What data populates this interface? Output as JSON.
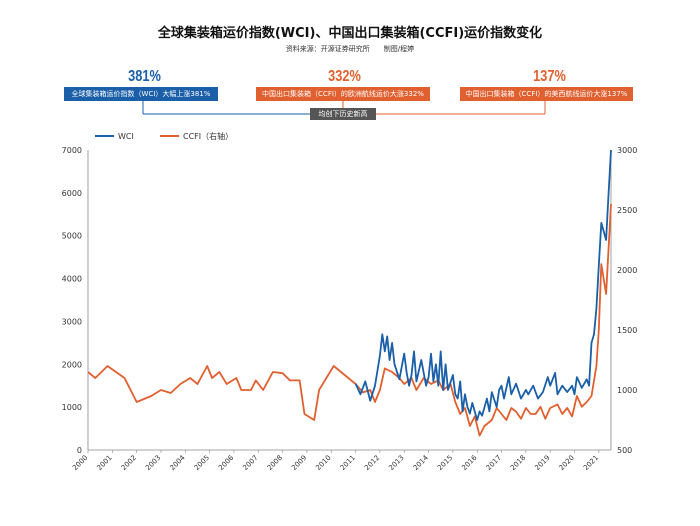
{
  "title": "全球集装箱运价指数(WCI)、中国出口集装箱(CCFI)运价指数变化",
  "source": "资料来源：开源证券研究所　　制图/程婷",
  "colors": {
    "wci": "#1a5fa8",
    "ccfi": "#e06030",
    "badge": "#555555"
  },
  "callouts": [
    {
      "value": "381%",
      "text": "全球集装箱运价指数（WCI）大幅上涨381%",
      "color": "#1a5fa8"
    },
    {
      "value": "332%",
      "text": "中国出口集装箱（CCFI）的欧洲航线运价大涨332%",
      "color": "#e06030"
    },
    {
      "value": "137%",
      "text": "中国出口集装箱（CCFI）的美西航线运价大涨137%",
      "color": "#e06030"
    }
  ],
  "badge": "均创下历史新高",
  "chart_data": {
    "type": "line",
    "title": "全球集装箱运价指数(WCI)、中国出口集装箱(CCFI)运价指数变化",
    "x_ticks": [
      "2000",
      "2001",
      "2002",
      "2003",
      "2004",
      "2005",
      "2006",
      "2007",
      "2008",
      "2009",
      "2010",
      "2011",
      "2012",
      "2013",
      "2014",
      "2015",
      "2016",
      "2017",
      "2018",
      "2019",
      "2020",
      "2021"
    ],
    "y_left": {
      "min": 0,
      "max": 7000,
      "ticks": [
        "0",
        "1000",
        "2000",
        "3000",
        "4000",
        "5000",
        "6000",
        "7000"
      ]
    },
    "y_right": {
      "min": 500,
      "max": 3000,
      "ticks": [
        "500",
        "1000",
        "1500",
        "2000",
        "2500",
        "3000"
      ]
    },
    "series": [
      {
        "name": "WCI",
        "axis": "left",
        "points": [
          [
            2011.0,
            1550
          ],
          [
            2011.2,
            1300
          ],
          [
            2011.4,
            1600
          ],
          [
            2011.6,
            1150
          ],
          [
            2011.8,
            1500
          ],
          [
            2012.0,
            2200
          ],
          [
            2012.1,
            2700
          ],
          [
            2012.2,
            2300
          ],
          [
            2012.3,
            2650
          ],
          [
            2012.4,
            2100
          ],
          [
            2012.5,
            2500
          ],
          [
            2012.6,
            2000
          ],
          [
            2012.8,
            1650
          ],
          [
            2013.0,
            2250
          ],
          [
            2013.1,
            1800
          ],
          [
            2013.2,
            1500
          ],
          [
            2013.3,
            1750
          ],
          [
            2013.4,
            2300
          ],
          [
            2013.5,
            1600
          ],
          [
            2013.7,
            2100
          ],
          [
            2013.9,
            1500
          ],
          [
            2014.0,
            1700
          ],
          [
            2014.1,
            2250
          ],
          [
            2014.2,
            1600
          ],
          [
            2014.3,
            2000
          ],
          [
            2014.4,
            1500
          ],
          [
            2014.5,
            2300
          ],
          [
            2014.6,
            1400
          ],
          [
            2014.7,
            2000
          ],
          [
            2014.8,
            1400
          ],
          [
            2015.0,
            1750
          ],
          [
            2015.1,
            1300
          ],
          [
            2015.2,
            1200
          ],
          [
            2015.3,
            1600
          ],
          [
            2015.4,
            900
          ],
          [
            2015.5,
            1300
          ],
          [
            2015.6,
            1000
          ],
          [
            2015.7,
            850
          ],
          [
            2015.8,
            1100
          ],
          [
            2016.0,
            700
          ],
          [
            2016.1,
            900
          ],
          [
            2016.2,
            800
          ],
          [
            2016.4,
            1200
          ],
          [
            2016.5,
            900
          ],
          [
            2016.6,
            1350
          ],
          [
            2016.8,
            1000
          ],
          [
            2016.9,
            1400
          ],
          [
            2017.0,
            1500
          ],
          [
            2017.1,
            1200
          ],
          [
            2017.3,
            1700
          ],
          [
            2017.4,
            1300
          ],
          [
            2017.6,
            1550
          ],
          [
            2017.8,
            1200
          ],
          [
            2018.0,
            1400
          ],
          [
            2018.1,
            1300
          ],
          [
            2018.3,
            1500
          ],
          [
            2018.5,
            1200
          ],
          [
            2018.7,
            1350
          ],
          [
            2018.9,
            1700
          ],
          [
            2019.0,
            1500
          ],
          [
            2019.2,
            1800
          ],
          [
            2019.3,
            1300
          ],
          [
            2019.5,
            1500
          ],
          [
            2019.7,
            1350
          ],
          [
            2019.9,
            1500
          ],
          [
            2020.0,
            1300
          ],
          [
            2020.1,
            1700
          ],
          [
            2020.3,
            1450
          ],
          [
            2020.5,
            1650
          ],
          [
            2020.6,
            1500
          ],
          [
            2020.7,
            2500
          ],
          [
            2020.8,
            2700
          ],
          [
            2020.9,
            3300
          ],
          [
            2021.0,
            4300
          ],
          [
            2021.1,
            5300
          ],
          [
            2021.2,
            5100
          ],
          [
            2021.3,
            4900
          ],
          [
            2021.4,
            6000
          ],
          [
            2021.5,
            7000
          ]
        ]
      },
      {
        "name": "CCFI（右轴）",
        "axis": "right",
        "points": [
          [
            2000.0,
            1150
          ],
          [
            2000.3,
            1100
          ],
          [
            2000.8,
            1200
          ],
          [
            2001.5,
            1100
          ],
          [
            2002.0,
            900
          ],
          [
            2002.6,
            950
          ],
          [
            2003.0,
            1000
          ],
          [
            2003.4,
            975
          ],
          [
            2003.8,
            1050
          ],
          [
            2004.2,
            1100
          ],
          [
            2004.5,
            1050
          ],
          [
            2004.9,
            1200
          ],
          [
            2005.1,
            1100
          ],
          [
            2005.4,
            1150
          ],
          [
            2005.7,
            1050
          ],
          [
            2006.1,
            1100
          ],
          [
            2006.3,
            1000
          ],
          [
            2006.7,
            1000
          ],
          [
            2006.9,
            1080
          ],
          [
            2007.2,
            1000
          ],
          [
            2007.6,
            1150
          ],
          [
            2008.0,
            1140
          ],
          [
            2008.3,
            1080
          ],
          [
            2008.7,
            1080
          ],
          [
            2008.9,
            800
          ],
          [
            2009.3,
            750
          ],
          [
            2009.5,
            1000
          ],
          [
            2009.8,
            1100
          ],
          [
            2010.1,
            1200
          ],
          [
            2010.4,
            1150
          ],
          [
            2010.7,
            1100
          ],
          [
            2011.0,
            1050
          ],
          [
            2011.3,
            980
          ],
          [
            2011.6,
            1000
          ],
          [
            2011.8,
            900
          ],
          [
            2012.0,
            1000
          ],
          [
            2012.2,
            1180
          ],
          [
            2012.5,
            1150
          ],
          [
            2012.8,
            1100
          ],
          [
            2013.0,
            1050
          ],
          [
            2013.3,
            1100
          ],
          [
            2013.5,
            1000
          ],
          [
            2013.8,
            1100
          ],
          [
            2014.1,
            1050
          ],
          [
            2014.4,
            1080
          ],
          [
            2014.6,
            1000
          ],
          [
            2014.9,
            1050
          ],
          [
            2015.1,
            900
          ],
          [
            2015.3,
            800
          ],
          [
            2015.5,
            850
          ],
          [
            2015.7,
            700
          ],
          [
            2015.9,
            780
          ],
          [
            2016.1,
            620
          ],
          [
            2016.3,
            700
          ],
          [
            2016.6,
            750
          ],
          [
            2016.8,
            850
          ],
          [
            2017.0,
            800
          ],
          [
            2017.2,
            750
          ],
          [
            2017.4,
            850
          ],
          [
            2017.6,
            820
          ],
          [
            2017.8,
            760
          ],
          [
            2018.0,
            850
          ],
          [
            2018.2,
            800
          ],
          [
            2018.4,
            800
          ],
          [
            2018.6,
            860
          ],
          [
            2018.8,
            760
          ],
          [
            2019.0,
            850
          ],
          [
            2019.3,
            880
          ],
          [
            2019.5,
            800
          ],
          [
            2019.7,
            850
          ],
          [
            2019.9,
            780
          ],
          [
            2020.1,
            950
          ],
          [
            2020.3,
            860
          ],
          [
            2020.5,
            900
          ],
          [
            2020.7,
            950
          ],
          [
            2020.9,
            1200
          ],
          [
            2021.0,
            1500
          ],
          [
            2021.1,
            2050
          ],
          [
            2021.3,
            1800
          ],
          [
            2021.5,
            2550
          ]
        ]
      }
    ]
  }
}
